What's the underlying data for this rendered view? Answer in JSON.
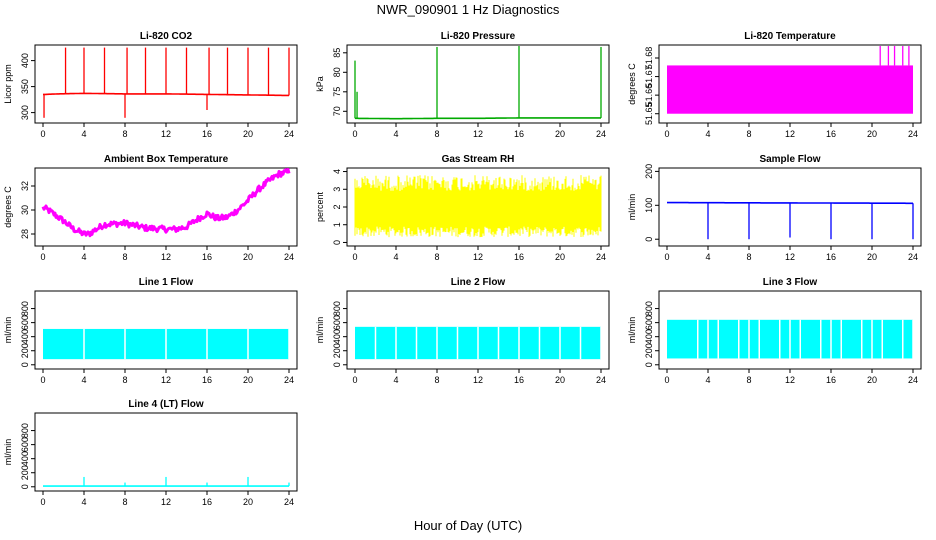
{
  "figure": {
    "title": "NWR_090901  1 Hz Diagnostics",
    "xlabel": "Hour of Day (UTC)"
  },
  "colors": {
    "co2": "#ff0000",
    "pressure": "#00aa00",
    "temperature": "#ff00ff",
    "box_temp": "#ff00ff",
    "rh": "#ffff00",
    "sample_flow": "#0000ff",
    "line_flow": "#00ffff"
  },
  "chart_data": [
    {
      "type": "line",
      "title": "Li-820 CO2",
      "xlabel": "",
      "ylabel": "Licor ppm",
      "xlim": [
        0,
        24
      ],
      "x_ticks": [
        0,
        4,
        8,
        12,
        16,
        20,
        24
      ],
      "ylim": [
        280,
        430
      ],
      "y_ticks": [
        300,
        350,
        400
      ],
      "color_key": "co2",
      "series": [
        {
          "x": [
            0,
            0.2,
            1.5,
            4,
            8,
            12,
            16,
            20,
            24
          ],
          "values": [
            335,
            335,
            336,
            337,
            336,
            336,
            335,
            334,
            333
          ],
          "spikes": [
            {
              "x": 0.1,
              "value": 290
            },
            {
              "x": 2.2,
              "value": 425
            },
            {
              "x": 4,
              "value": 425
            },
            {
              "x": 6,
              "value": 425
            },
            {
              "x": 8,
              "value": 290
            },
            {
              "x": 8.2,
              "value": 425
            },
            {
              "x": 10,
              "value": 425
            },
            {
              "x": 12,
              "value": 425
            },
            {
              "x": 14,
              "value": 425
            },
            {
              "x": 16,
              "value": 305
            },
            {
              "x": 16.2,
              "value": 425
            },
            {
              "x": 18,
              "value": 425
            },
            {
              "x": 20,
              "value": 425
            },
            {
              "x": 22,
              "value": 425
            },
            {
              "x": 24,
              "value": 425
            }
          ]
        }
      ]
    },
    {
      "type": "line",
      "title": "Li-820 Pressure",
      "xlabel": "",
      "ylabel": "kPa",
      "xlim": [
        0,
        24
      ],
      "x_ticks": [
        0,
        4,
        8,
        12,
        16,
        20,
        24
      ],
      "ylim": [
        67,
        87
      ],
      "y_ticks": [
        70,
        75,
        80,
        85
      ],
      "color_key": "pressure",
      "series": [
        {
          "x": [
            0,
            4,
            8,
            12,
            16,
            20,
            24
          ],
          "values": [
            68.2,
            68.1,
            68.2,
            68.2,
            68.3,
            68.3,
            68.3
          ],
          "spikes": [
            {
              "x": 0,
              "value": 83
            },
            {
              "x": 0.2,
              "value": 75
            },
            {
              "x": 8,
              "value": 86.5
            },
            {
              "x": 16,
              "value": 86.8
            },
            {
              "x": 24,
              "value": 86.5
            }
          ]
        }
      ]
    },
    {
      "type": "line",
      "title": "Li-820 Temperature",
      "xlabel": "",
      "ylabel": "degrees C",
      "xlim": [
        0,
        24
      ],
      "x_ticks": [
        0,
        4,
        8,
        12,
        16,
        20,
        24
      ],
      "ylim": [
        51.645,
        51.687
      ],
      "y_ticks": [
        51.65,
        51.66,
        51.67,
        51.68
      ],
      "color_key": "temperature",
      "series": [
        {
          "x": [
            0,
            24
          ],
          "band_low": 51.65,
          "band_high": 51.676,
          "spikes": [
            {
              "x": 20.8,
              "value": 51.687
            },
            {
              "x": 21.6,
              "value": 51.687
            },
            {
              "x": 22.2,
              "value": 51.687
            },
            {
              "x": 23,
              "value": 51.687
            },
            {
              "x": 23.6,
              "value": 51.687
            }
          ]
        }
      ]
    },
    {
      "type": "line",
      "title": "Ambient Box Temperature",
      "xlabel": "",
      "ylabel": "degrees C",
      "xlim": [
        0,
        24
      ],
      "x_ticks": [
        0,
        4,
        8,
        12,
        16,
        20,
        24
      ],
      "ylim": [
        27,
        33.5
      ],
      "y_ticks": [
        28,
        30,
        32
      ],
      "color_key": "box_temp",
      "series": [
        {
          "x": [
            0,
            0.5,
            1,
            2,
            3,
            4,
            4.5,
            5,
            6,
            8,
            10,
            12,
            13,
            14,
            15,
            16,
            17,
            18,
            19,
            20,
            21,
            22,
            23,
            24
          ],
          "values": [
            30.2,
            30.0,
            29.7,
            29.1,
            28.4,
            28.0,
            28.0,
            28.3,
            28.8,
            28.9,
            28.5,
            28.4,
            28.4,
            28.6,
            29.2,
            29.7,
            29.3,
            29.4,
            30.0,
            30.8,
            31.7,
            32.4,
            33.0,
            33.2
          ],
          "noise": 0.5
        }
      ]
    },
    {
      "type": "line",
      "title": "Gas Stream RH",
      "xlabel": "",
      "ylabel": "percent",
      "xlim": [
        0,
        24
      ],
      "x_ticks": [
        0,
        4,
        8,
        12,
        16,
        20,
        24
      ],
      "ylim": [
        -0.2,
        4.2
      ],
      "y_ticks": [
        0,
        1,
        2,
        3,
        4
      ],
      "color_key": "rh",
      "series": [
        {
          "x": [
            0,
            24
          ],
          "band_low": 0.3,
          "band_high": 3.8,
          "noise": 1.5
        }
      ]
    },
    {
      "type": "line",
      "title": "Sample Flow",
      "xlabel": "",
      "ylabel": "ml/min",
      "xlim": [
        0,
        24
      ],
      "x_ticks": [
        0,
        4,
        8,
        12,
        16,
        20,
        24
      ],
      "ylim": [
        -20,
        210
      ],
      "y_ticks": [
        0,
        100,
        200
      ],
      "color_key": "sample_flow",
      "series": [
        {
          "x": [
            0,
            24
          ],
          "values": [
            108,
            106
          ],
          "spikes": [
            {
              "x": 4,
              "value": 0
            },
            {
              "x": 8,
              "value": 0
            },
            {
              "x": 12,
              "value": 5
            },
            {
              "x": 16,
              "value": 0
            },
            {
              "x": 20,
              "value": 0
            },
            {
              "x": 24,
              "value": 0
            }
          ]
        }
      ]
    },
    {
      "type": "area",
      "title": "Line 1 Flow",
      "xlabel": "",
      "ylabel": "ml/min",
      "xlim": [
        0,
        24
      ],
      "x_ticks": [
        0,
        4,
        8,
        12,
        16,
        20,
        24
      ],
      "ylim": [
        -60,
        1050
      ],
      "y_ticks": [
        0,
        200,
        400,
        600,
        800
      ],
      "color_key": "line_flow",
      "series": [
        {
          "x": [
            0,
            24
          ],
          "band_low": 80,
          "band_high": 510,
          "dips": [
            4,
            8,
            12,
            16,
            20,
            24
          ]
        }
      ]
    },
    {
      "type": "area",
      "title": "Line 2 Flow",
      "xlabel": "",
      "ylabel": "ml/min",
      "xlim": [
        0,
        24
      ],
      "x_ticks": [
        0,
        4,
        8,
        12,
        16,
        20,
        24
      ],
      "ylim": [
        -60,
        1050
      ],
      "y_ticks": [
        0,
        200,
        400,
        600,
        800
      ],
      "color_key": "line_flow",
      "series": [
        {
          "x": [
            0,
            24
          ],
          "band_low": 80,
          "band_high": 540,
          "dips": [
            2,
            4,
            6,
            8,
            10,
            12,
            14,
            16,
            18,
            20,
            22,
            24
          ]
        }
      ]
    },
    {
      "type": "area",
      "title": "Line 3 Flow",
      "xlabel": "",
      "ylabel": "ml/min",
      "xlim": [
        0,
        24
      ],
      "x_ticks": [
        0,
        4,
        8,
        12,
        16,
        20,
        24
      ],
      "ylim": [
        -60,
        1050
      ],
      "y_ticks": [
        0,
        200,
        400,
        600,
        800
      ],
      "color_key": "line_flow",
      "series": [
        {
          "x": [
            0,
            24
          ],
          "band_low": 90,
          "band_high": 640,
          "dips": [
            3,
            4,
            5,
            7,
            8,
            9,
            11,
            12,
            13,
            15,
            16,
            17,
            19,
            20,
            21,
            23,
            24
          ]
        }
      ]
    },
    {
      "type": "line",
      "title": "Line 4 (LT) Flow",
      "xlabel": "",
      "ylabel": "ml/min",
      "xlim": [
        0,
        24
      ],
      "x_ticks": [
        0,
        4,
        8,
        12,
        16,
        20,
        24
      ],
      "ylim": [
        -60,
        1050
      ],
      "y_ticks": [
        0,
        200,
        400,
        600,
        800
      ],
      "color_key": "line_flow",
      "series": [
        {
          "x": [
            0,
            24
          ],
          "values": [
            10,
            10
          ],
          "spikes": [
            {
              "x": 4,
              "value": 140
            },
            {
              "x": 8,
              "value": 60
            },
            {
              "x": 12,
              "value": 140
            },
            {
              "x": 16,
              "value": 60
            },
            {
              "x": 20,
              "value": 140
            },
            {
              "x": 24,
              "value": 60
            }
          ]
        }
      ]
    }
  ]
}
